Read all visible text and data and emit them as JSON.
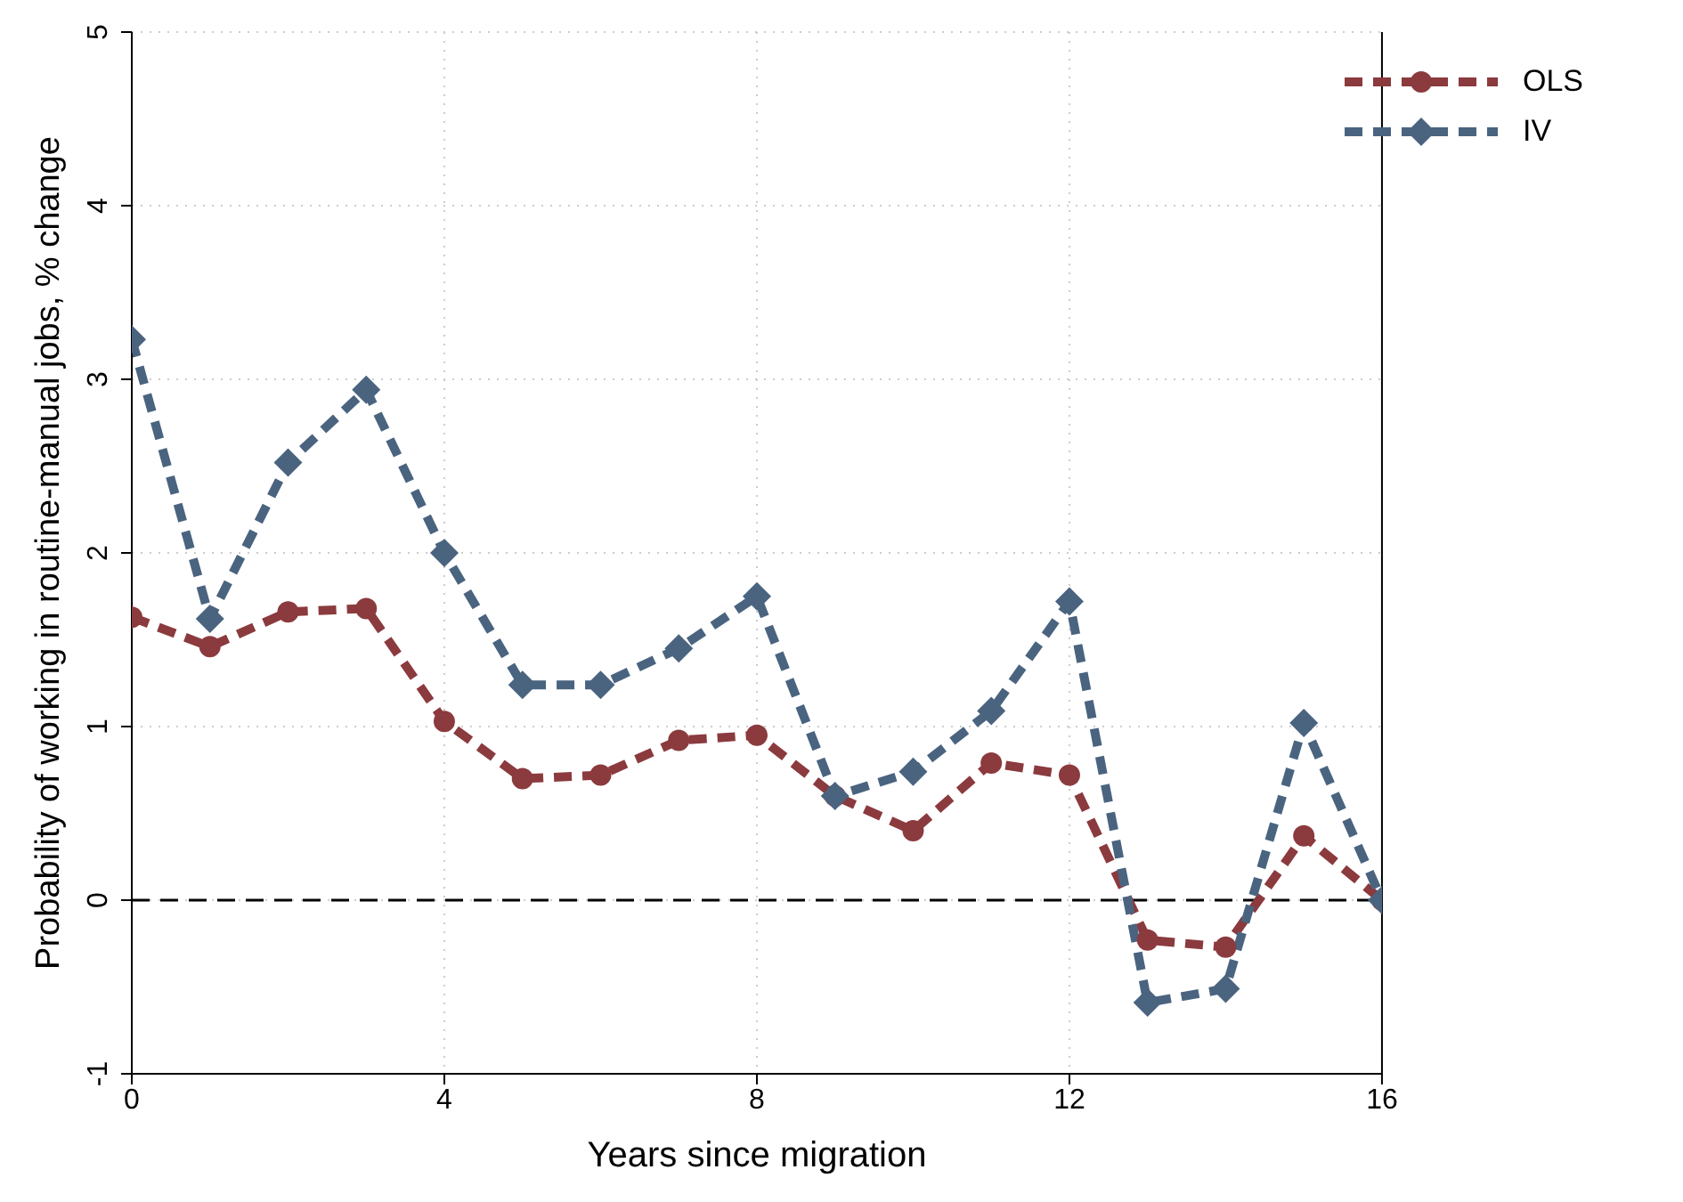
{
  "chart_data": {
    "type": "line",
    "xlabel": "Years since migration",
    "ylabel": "Probability of working in routine-manual jobs, % change",
    "x": [
      0,
      1,
      2,
      3,
      4,
      5,
      6,
      7,
      8,
      9,
      10,
      11,
      12,
      13,
      14,
      15,
      16
    ],
    "series": [
      {
        "name": "OLS",
        "color": "#8b3a3e",
        "marker": "circle",
        "values": [
          1.63,
          1.46,
          1.66,
          1.68,
          1.03,
          0.7,
          0.72,
          0.92,
          0.95,
          0.6,
          0.4,
          0.79,
          0.72,
          -0.23,
          -0.27,
          0.37,
          0
        ]
      },
      {
        "name": "IV",
        "color": "#4a6480",
        "marker": "diamond",
        "values": [
          3.23,
          1.62,
          2.52,
          2.94,
          2.0,
          1.24,
          1.24,
          1.45,
          1.75,
          0.6,
          0.74,
          1.09,
          1.72,
          -0.59,
          -0.51,
          1.02,
          0
        ]
      }
    ],
    "xlim": [
      0,
      16
    ],
    "xticks": [
      0,
      4,
      8,
      12,
      16
    ],
    "ylim": [
      -1,
      5
    ],
    "yticks": [
      -1,
      0,
      1,
      2,
      3,
      4,
      5
    ],
    "ref_lines": [
      {
        "axis": "y",
        "value": 0,
        "color": "#000000",
        "line_style": "dashed"
      }
    ],
    "grid": true,
    "legend": "top right",
    "line_style": "dashed"
  }
}
